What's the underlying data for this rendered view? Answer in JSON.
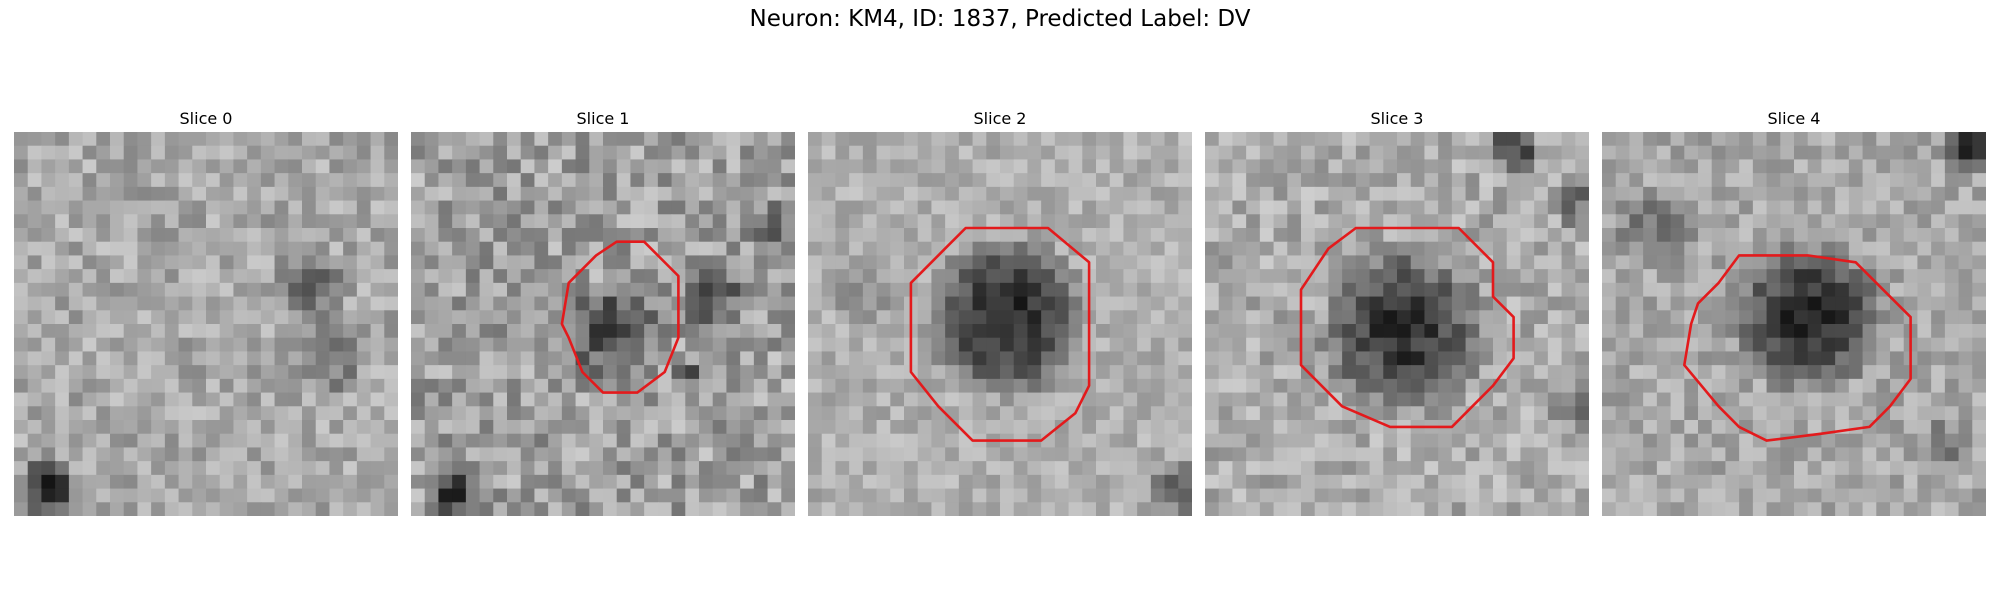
{
  "figure": {
    "title": "Neuron: KM4, ID: 1837, Predicted Label: DV"
  },
  "panels": [
    {
      "title": "Slice 0",
      "has_contour": false
    },
    {
      "title": "Slice 1",
      "has_contour": true
    },
    {
      "title": "Slice 2",
      "has_contour": true
    },
    {
      "title": "Slice 3",
      "has_contour": true
    },
    {
      "title": "Slice 4",
      "has_contour": true
    }
  ],
  "colors": {
    "contour": "#e31a1c",
    "background": "#ffffff"
  },
  "image_style": "grayscale microscopy patch with red segmentation contour"
}
